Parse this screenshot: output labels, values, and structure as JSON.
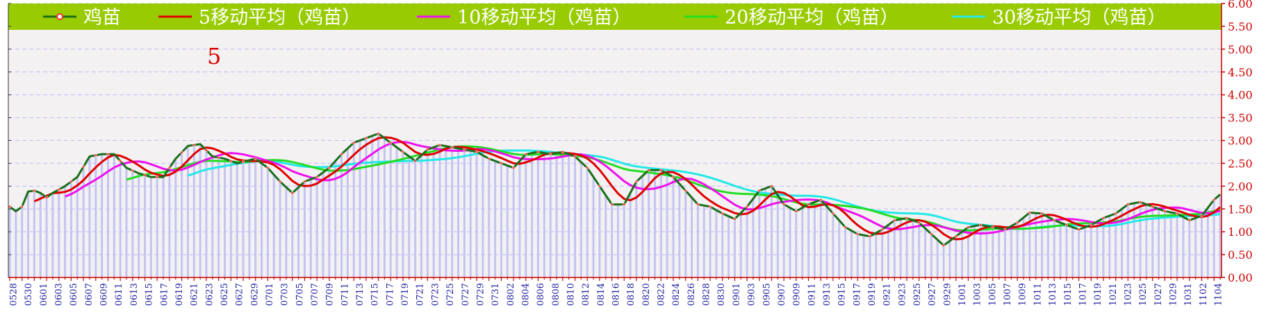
{
  "chart_data": {
    "type": "line",
    "annotation": "5",
    "legend_position": "top",
    "grid": true,
    "ylim": [
      0,
      6
    ],
    "yticks": [
      "0.00",
      "0.50",
      "1.00",
      "1.50",
      "2.00",
      "2.50",
      "3.00",
      "3.50",
      "4.00",
      "4.50",
      "5.00",
      "5.50",
      "6.00"
    ],
    "xtick_labels": [
      "0528",
      "0530",
      "0601",
      "0603",
      "0605",
      "0607",
      "0609",
      "0611",
      "0613",
      "0615",
      "0617",
      "0619",
      "0621",
      "0623",
      "0625",
      "0627",
      "0629",
      "0701",
      "0703",
      "0705",
      "0707",
      "0709",
      "0711",
      "0713",
      "0715",
      "0717",
      "0719",
      "0721",
      "0723",
      "0725",
      "0727",
      "0729",
      "0731",
      "0802",
      "0804",
      "0806",
      "0808",
      "0810",
      "0812",
      "0814",
      "0816",
      "0818",
      "0820",
      "0822",
      "0824",
      "0826",
      "0828",
      "0830",
      "0901",
      "0903",
      "0905",
      "0907",
      "0909",
      "0911",
      "0913",
      "0915",
      "0917",
      "0919",
      "0921",
      "0923",
      "0925",
      "0927",
      "0929",
      "1001",
      "1003",
      "1005",
      "1007",
      "1009",
      "1011",
      "1013",
      "1015",
      "1017",
      "1019",
      "1021",
      "1023",
      "1025",
      "1027",
      "1029",
      "1031",
      "1102",
      "1104"
    ],
    "anchors": [
      [
        0,
        1.55
      ],
      [
        1,
        1.45
      ],
      [
        2,
        1.55
      ],
      [
        3,
        1.88
      ],
      [
        4,
        1.9
      ],
      [
        5,
        1.85
      ],
      [
        6,
        1.75
      ],
      [
        7,
        1.85
      ],
      [
        9,
        2.0
      ],
      [
        11,
        2.2
      ],
      [
        13,
        2.65
      ],
      [
        15,
        2.7
      ],
      [
        17,
        2.7
      ],
      [
        19,
        2.4
      ],
      [
        21,
        2.28
      ],
      [
        23,
        2.2
      ],
      [
        25,
        2.2
      ],
      [
        27,
        2.6
      ],
      [
        29,
        2.88
      ],
      [
        31,
        2.92
      ],
      [
        33,
        2.65
      ],
      [
        35,
        2.6
      ],
      [
        37,
        2.5
      ],
      [
        40,
        2.6
      ],
      [
        42,
        2.4
      ],
      [
        44,
        2.1
      ],
      [
        46,
        1.85
      ],
      [
        48,
        2.1
      ],
      [
        50,
        2.2
      ],
      [
        52,
        2.4
      ],
      [
        54,
        2.7
      ],
      [
        56,
        2.95
      ],
      [
        58,
        3.05
      ],
      [
        60,
        3.15
      ],
      [
        62,
        2.95
      ],
      [
        64,
        2.75
      ],
      [
        66,
        2.55
      ],
      [
        68,
        2.8
      ],
      [
        70,
        2.9
      ],
      [
        72,
        2.85
      ],
      [
        74,
        2.8
      ],
      [
        76,
        2.75
      ],
      [
        78,
        2.6
      ],
      [
        80,
        2.5
      ],
      [
        82,
        2.4
      ],
      [
        84,
        2.7
      ],
      [
        86,
        2.75
      ],
      [
        88,
        2.7
      ],
      [
        90,
        2.75
      ],
      [
        92,
        2.65
      ],
      [
        94,
        2.4
      ],
      [
        96,
        2.0
      ],
      [
        98,
        1.6
      ],
      [
        100,
        1.6
      ],
      [
        102,
        2.1
      ],
      [
        104,
        2.35
      ],
      [
        106,
        2.35
      ],
      [
        108,
        2.2
      ],
      [
        110,
        1.9
      ],
      [
        112,
        1.6
      ],
      [
        114,
        1.55
      ],
      [
        116,
        1.4
      ],
      [
        118,
        1.28
      ],
      [
        120,
        1.55
      ],
      [
        122,
        1.9
      ],
      [
        124,
        2.0
      ],
      [
        126,
        1.6
      ],
      [
        128,
        1.45
      ],
      [
        130,
        1.6
      ],
      [
        132,
        1.7
      ],
      [
        134,
        1.4
      ],
      [
        136,
        1.1
      ],
      [
        138,
        0.95
      ],
      [
        140,
        0.9
      ],
      [
        142,
        1.05
      ],
      [
        144,
        1.25
      ],
      [
        146,
        1.3
      ],
      [
        148,
        1.2
      ],
      [
        150,
        0.95
      ],
      [
        152,
        0.7
      ],
      [
        154,
        0.9
      ],
      [
        156,
        1.1
      ],
      [
        158,
        1.15
      ],
      [
        160,
        1.1
      ],
      [
        162,
        1.05
      ],
      [
        164,
        1.2
      ],
      [
        166,
        1.42
      ],
      [
        168,
        1.4
      ],
      [
        170,
        1.25
      ],
      [
        172,
        1.15
      ],
      [
        174,
        1.05
      ],
      [
        176,
        1.15
      ],
      [
        178,
        1.3
      ],
      [
        180,
        1.4
      ],
      [
        182,
        1.6
      ],
      [
        184,
        1.65
      ],
      [
        186,
        1.55
      ],
      [
        188,
        1.45
      ],
      [
        190,
        1.4
      ],
      [
        192,
        1.25
      ],
      [
        194,
        1.35
      ],
      [
        196,
        1.7
      ],
      [
        197,
        1.82
      ]
    ],
    "series": [
      {
        "name": "鸡苗",
        "color": "#1a6e1a",
        "marker": "circle-red"
      },
      {
        "name": "5移动平均（鸡苗）",
        "color": "#e00000",
        "window": 5
      },
      {
        "name": "10移动平均（鸡苗）",
        "color": "#ee10ee",
        "window": 10
      },
      {
        "name": "20移动平均（鸡苗）",
        "color": "#22dd22",
        "window": 20
      },
      {
        "name": "30移动平均（鸡苗）",
        "color": "#22e8e8",
        "window": 30
      }
    ]
  },
  "colors": {
    "legend_bg": "#99cc00",
    "plot_bg": "#f3f1f1",
    "grid": "#bbbbff",
    "bars": "#c4c4f2",
    "axis": "#cc0000"
  }
}
